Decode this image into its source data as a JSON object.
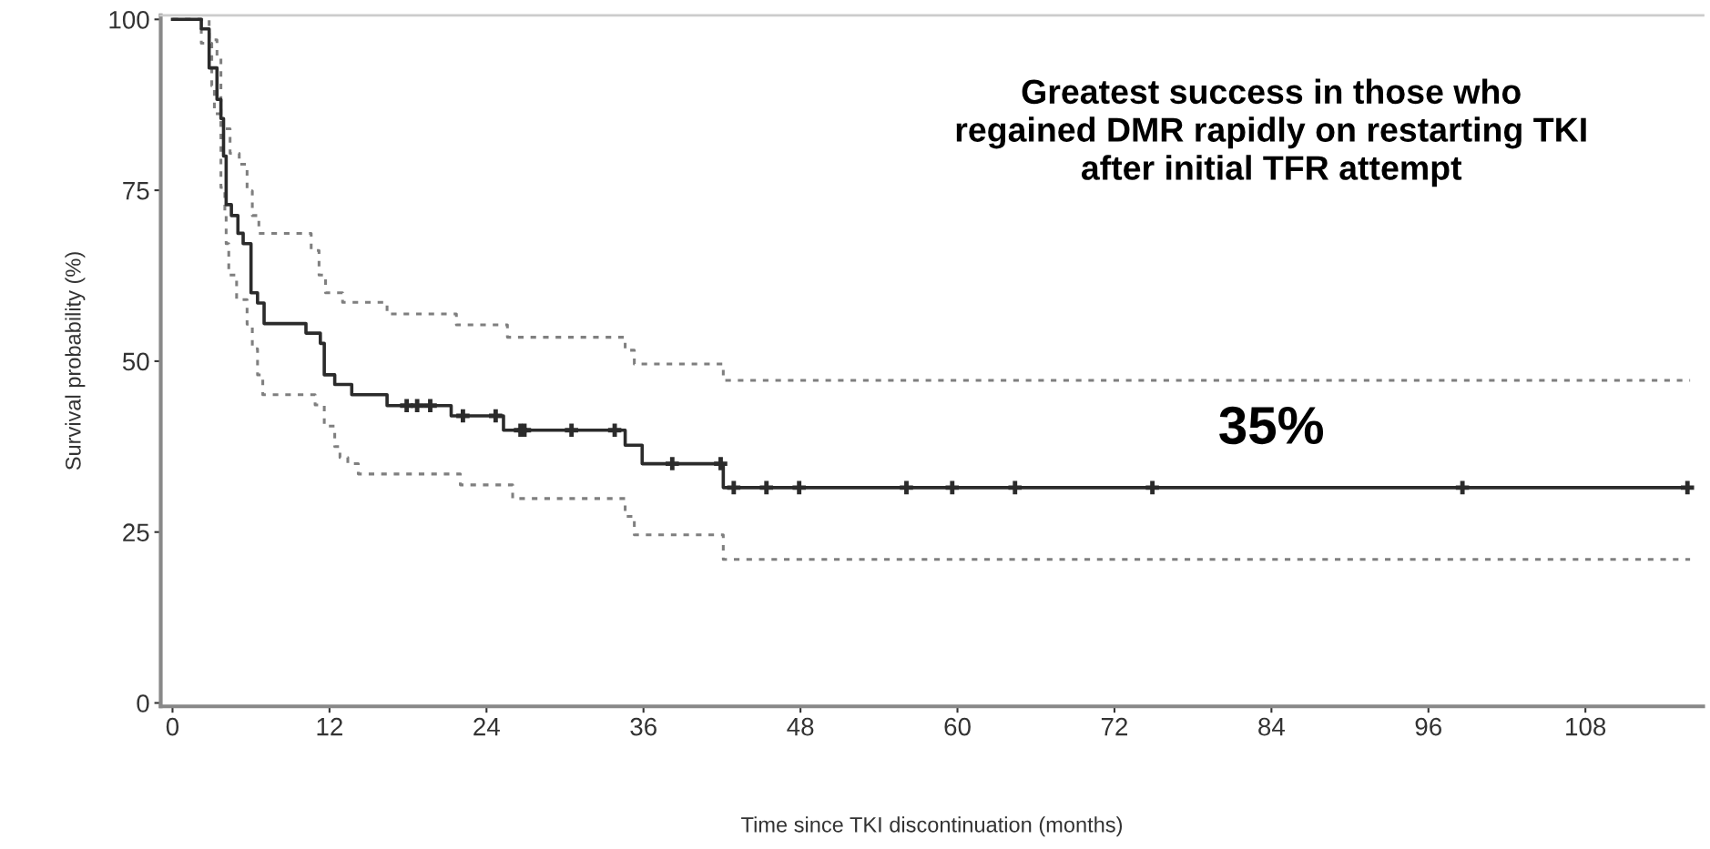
{
  "chart_data": {
    "type": "step",
    "xlabel": "Time since TKI discontinuation (months)",
    "ylabel": "Survival probability (%)",
    "xlim": [
      -0.9,
      117
    ],
    "ylim": [
      -0.5,
      100.6
    ],
    "xticks": [
      0,
      12,
      24,
      36,
      48,
      60,
      72,
      84,
      96,
      108
    ],
    "yticks": [
      0,
      25,
      50,
      75,
      100
    ],
    "grid": false,
    "legend": false,
    "annotations": [
      "Greatest success in those who\nregained DMR rapidly on restarting TKI\nafter initial TFR attempt",
      "35%"
    ],
    "series": [
      {
        "type": "step",
        "color": "#7f7f7f",
        "line_style": "dotted",
        "x": [
          0,
          2.8,
          3.4,
          3.7,
          4.4,
          5.1,
          5.7,
          6.1,
          6.6,
          10.6,
          11.2,
          11.7,
          13.0,
          16.4,
          21.7,
          25.6,
          34.6,
          35.3,
          42.1,
          116
        ],
        "values": [
          100,
          97,
          94.7,
          84,
          80.4,
          78.8,
          74.9,
          71.3,
          68.7,
          66.2,
          62.6,
          60,
          58.6,
          56.9,
          55.3,
          53.5,
          51.6,
          49.6,
          47.2,
          47.2
        ]
      },
      {
        "type": "step",
        "color": "#7f7f7f",
        "line_style": "dotted",
        "x": [
          0,
          2.2,
          3.0,
          3.2,
          3.7,
          4.0,
          4.1,
          4.3,
          4.9,
          5.7,
          6.1,
          6.5,
          6.9,
          10.9,
          11.6,
          12.4,
          12.8,
          13.4,
          14.2,
          22.0,
          26.0,
          34.6,
          35.3,
          42.1,
          116
        ],
        "values": [
          100,
          96.5,
          90.3,
          86.2,
          75.4,
          71.3,
          67.2,
          62.6,
          59,
          55.4,
          51.8,
          48,
          45.1,
          43.6,
          40.5,
          37.5,
          35.9,
          35,
          33.5,
          31.9,
          29.9,
          27.3,
          24.6,
          21.0,
          21.0
        ]
      },
      {
        "type": "step",
        "color": "#2b2b2b",
        "line_style": "solid",
        "x": [
          0,
          2.2,
          2.8,
          3.4,
          3.7,
          3.9,
          4.1,
          4.5,
          5.0,
          5.4,
          6.0,
          6.5,
          7.0,
          10.2,
          11.3,
          11.6,
          12.4,
          13.7,
          16.4,
          21.3,
          25.3,
          34.6,
          35.9,
          42.1,
          116
        ],
        "values": [
          100,
          98.6,
          92.9,
          88.3,
          85.5,
          80,
          72.9,
          71.3,
          68.7,
          67.2,
          60,
          58.5,
          55.5,
          54.1,
          52.6,
          48,
          46.6,
          45.1,
          43.5,
          42,
          39.9,
          37.7,
          35,
          31.5,
          31.5
        ]
      },
      {
        "type": "scatter",
        "color": "#2b2b2b",
        "marker": "cross",
        "x": [
          17.9,
          18.7,
          19.7,
          22.2,
          24.7,
          26.6,
          26.9,
          30.5,
          33.8,
          38.2,
          41.9,
          42.9,
          45.4,
          47.9,
          56.1,
          59.6,
          64.4,
          74.9,
          98.6,
          115.8
        ],
        "values": [
          43.5,
          43.5,
          43.5,
          42,
          42,
          39.9,
          39.9,
          39.9,
          39.9,
          35,
          35,
          31.5,
          31.5,
          31.5,
          31.5,
          31.5,
          31.5,
          31.5,
          31.5,
          31.5
        ]
      }
    ]
  }
}
